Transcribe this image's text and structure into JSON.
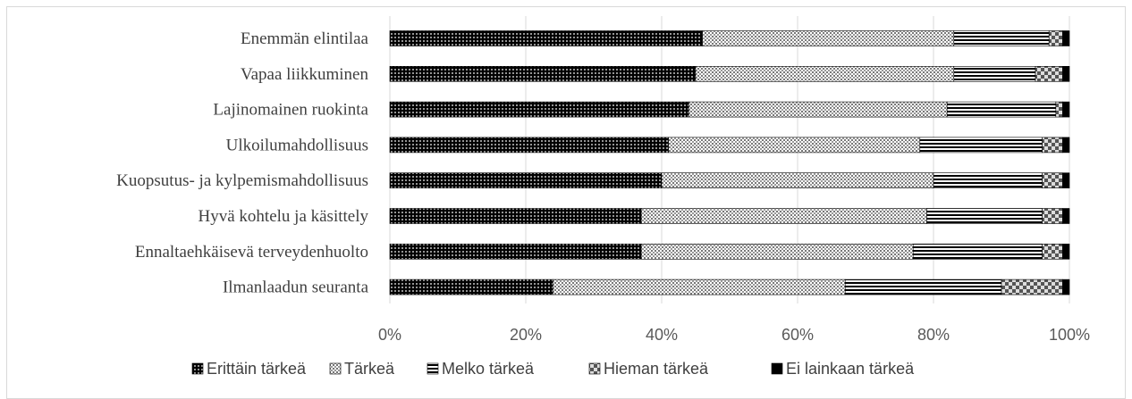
{
  "chart_data": {
    "type": "bar",
    "orientation": "horizontal",
    "stacked": "percent",
    "categories": [
      "Enemmän elintilaa",
      "Vapaa liikkuminen",
      "Lajinomainen ruokinta",
      "Ulkoilumahdollisuus",
      "Kuopsutus- ja kylpemismahdollisuus",
      "Hyvä kohtelu ja käsittely",
      "Ennaltaehkäisevä terveydenhuolto",
      "Ilmanlaadun seuranta"
    ],
    "series": [
      {
        "name": "Erittäin tärkeä",
        "pattern": "dense-dots",
        "values": [
          46,
          45,
          44,
          41,
          40,
          37,
          37,
          24
        ]
      },
      {
        "name": "Tärkeä",
        "pattern": "light-dots",
        "values": [
          37,
          38,
          38,
          37,
          40,
          42,
          40,
          43
        ]
      },
      {
        "name": "Melko tärkeä",
        "pattern": "horizontal-lines",
        "values": [
          14,
          12,
          16,
          18,
          16,
          17,
          19,
          23
        ]
      },
      {
        "name": "Hieman tärkeä",
        "pattern": "checker",
        "values": [
          2,
          4,
          1,
          3,
          3,
          3,
          3,
          9
        ]
      },
      {
        "name": "Ei lainkaan tärkeä",
        "pattern": "solid",
        "values": [
          1,
          1,
          1,
          1,
          1,
          1,
          1,
          1
        ]
      }
    ],
    "xlim": [
      0,
      100
    ],
    "xticks": [
      "0%",
      "20%",
      "40%",
      "60%",
      "80%",
      "100%"
    ],
    "grid": true,
    "legend_position": "bottom",
    "colors": {
      "dark": "#000000",
      "grid": "#d9d9d9",
      "text": "#404040",
      "tick": "#595959"
    }
  }
}
